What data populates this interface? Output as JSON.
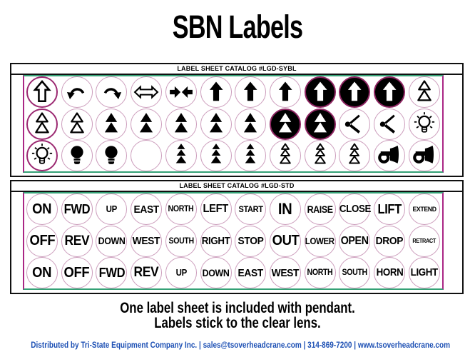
{
  "page_title": "SBN Labels",
  "colors": {
    "ring": "#cc9dbc",
    "ring_strong": "#9b2871",
    "ring_inverted": "#8e2562",
    "edge_green": "#35a176",
    "edge_magenta": "#aa2685",
    "footer_blue": "#1d50b4"
  },
  "sheets": [
    {
      "title": "LABEL SHEET CATALOG #LGD-SYBL",
      "kind": "symbols",
      "rows": [
        [
          {
            "icon": "up-arrow-outline",
            "ring": "strong"
          },
          {
            "icon": "curve-arrow-left"
          },
          {
            "icon": "curve-arrow-right"
          },
          {
            "icon": "double-arrow-horizontal-outline"
          },
          {
            "icon": "arrows-converging-solid"
          },
          {
            "icon": "up-arrow-solid"
          },
          {
            "icon": "up-arrow-solid"
          },
          {
            "icon": "up-arrow-solid"
          },
          {
            "icon": "up-arrow-solid",
            "inverted": true
          },
          {
            "icon": "up-arrow-solid",
            "inverted": true
          },
          {
            "icon": "up-arrow-solid",
            "inverted": true
          },
          {
            "icon": "double-triangle-outline"
          }
        ],
        [
          {
            "icon": "double-triangle-outline",
            "ring": "strong"
          },
          {
            "icon": "double-triangle-outline"
          },
          {
            "icon": "double-triangle-solid"
          },
          {
            "icon": "double-triangle-solid"
          },
          {
            "icon": "double-triangle-solid"
          },
          {
            "icon": "double-triangle-solid"
          },
          {
            "icon": "double-triangle-solid"
          },
          {
            "icon": "double-triangle-solid",
            "inverted": true
          },
          {
            "icon": "double-triangle-solid",
            "inverted": true
          },
          {
            "icon": "diverging-lines"
          },
          {
            "icon": "diverging-lines"
          },
          {
            "icon": "light-bulb-outline"
          }
        ],
        [
          {
            "icon": "light-bulb-outline",
            "ring": "strong"
          },
          {
            "icon": "light-bulb-solid"
          },
          {
            "icon": "light-bulb-solid"
          },
          {
            "icon": "blank"
          },
          {
            "icon": "triple-triangle-solid"
          },
          {
            "icon": "triple-triangle-solid"
          },
          {
            "icon": "triple-triangle-solid"
          },
          {
            "icon": "triple-triangle-outline"
          },
          {
            "icon": "triple-triangle-outline"
          },
          {
            "icon": "triple-triangle-outline"
          },
          {
            "icon": "horn-solid"
          },
          {
            "icon": "horn-solid"
          }
        ]
      ]
    },
    {
      "title": "LABEL SHEET CATALOG #LGD-STD",
      "kind": "text",
      "rows": [
        [
          "ON",
          "FWD",
          "UP",
          "EAST",
          "NORTH",
          "LEFT",
          "START",
          "IN",
          "RAISE",
          "CLOSE",
          "LIFT",
          "EXTEND"
        ],
        [
          "OFF",
          "REV",
          "DOWN",
          "WEST",
          "SOUTH",
          "RIGHT",
          "STOP",
          "OUT",
          "LOWER",
          "OPEN",
          "DROP",
          "RETRACT"
        ],
        [
          "ON",
          "OFF",
          "FWD",
          "REV",
          "UP",
          "DOWN",
          "EAST",
          "WEST",
          "NORTH",
          "SOUTH",
          "HORN",
          "LIGHT"
        ]
      ]
    }
  ],
  "notes": {
    "line1": "One label sheet is included with pendant.",
    "line2": "Labels stick to the clear lens."
  },
  "footer": {
    "text": "Distributed by Tri-State Equipment Company Inc.  |  sales@tsoverheadcrane.com  |  314-869-7200  |  www.tsoverheadcrane.com"
  }
}
